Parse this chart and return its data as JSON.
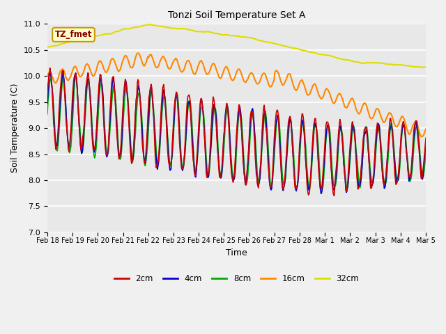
{
  "title": "Tonzi Soil Temperature Set A",
  "xlabel": "Time",
  "ylabel": "Soil Temperature (C)",
  "ylim": [
    7.0,
    11.0
  ],
  "plot_bg_color": "#e8e8e8",
  "fig_bg_color": "#f0f0f0",
  "legend_label": "TZ_fmet",
  "legend_bg": "#ffffcc",
  "legend_border": "#cc9900",
  "series_colors": {
    "2cm": "#cc0000",
    "4cm": "#0000cc",
    "8cm": "#00aa00",
    "16cm": "#ff8800",
    "32cm": "#dddd00"
  },
  "line_width": 1.2,
  "x_tick_labels": [
    "Feb 18",
    "Feb 19",
    "Feb 20",
    "Feb 21",
    "Feb 22",
    "Feb 23",
    "Feb 24",
    "Feb 25",
    "Feb 26",
    "Feb 27",
    "Feb 28",
    "Mar 1",
    "Mar 2",
    "Mar 3",
    "Mar 4",
    "Mar 5"
  ]
}
